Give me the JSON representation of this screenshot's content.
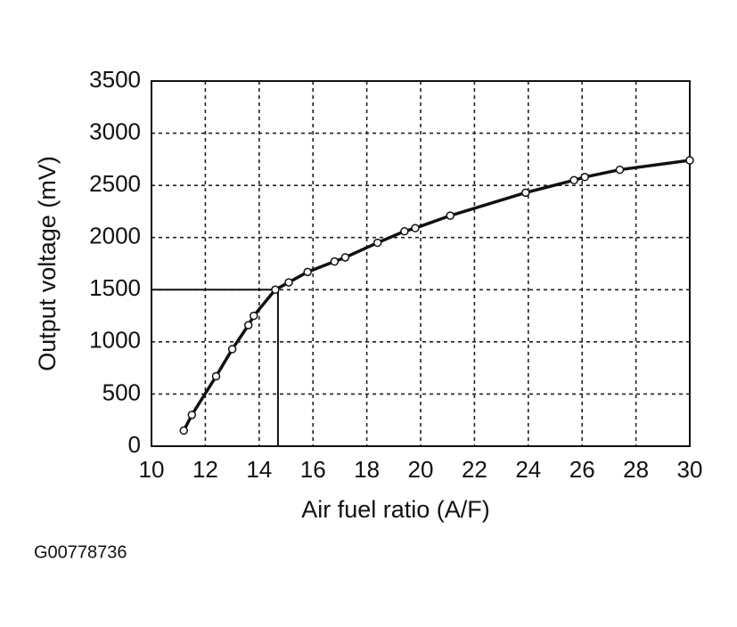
{
  "chart_data": {
    "type": "line",
    "xlabel": "Air fuel ratio (A/F)",
    "ylabel": "Output voltage (mV)",
    "caption": "G00778736",
    "x": [
      11.2,
      11.5,
      12.4,
      13.0,
      13.6,
      13.8,
      14.6,
      15.1,
      15.8,
      16.8,
      17.2,
      18.4,
      19.4,
      19.8,
      21.1,
      23.9,
      25.7,
      26.1,
      27.4,
      30
    ],
    "values": [
      150,
      300,
      670,
      930,
      1160,
      1250,
      1500,
      1570,
      1670,
      1770,
      1810,
      1950,
      2060,
      2090,
      2210,
      2430,
      2550,
      2580,
      2650,
      2740
    ],
    "color": "#111111",
    "reference": {
      "x": 14.7,
      "y": 1500
    },
    "xlim": [
      10,
      30
    ],
    "xticks": [
      10,
      12,
      14,
      16,
      18,
      20,
      22,
      24,
      26,
      28,
      30
    ],
    "ylim": [
      0,
      3500
    ],
    "yticks": [
      0,
      500,
      1000,
      1500,
      2000,
      2500,
      3000,
      3500
    ],
    "grid": true
  }
}
